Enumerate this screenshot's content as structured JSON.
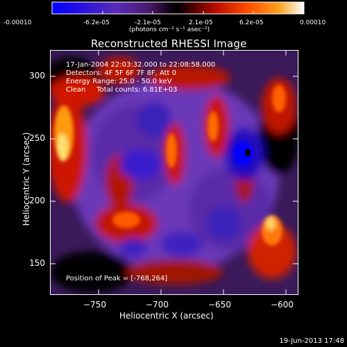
{
  "colorbar": {
    "tick_labels": [
      "-0.00010",
      "-6.2e-05",
      "-2.1e-05",
      "2.1e-05",
      "6.2e-05",
      "0.00010"
    ],
    "units": "(photons cm⁻² s⁻¹ asec⁻²)",
    "colors": [
      "#0000ff",
      "#3a1ccc",
      "#6a2ca8",
      "#2a1030",
      "#000000",
      "#6a0000",
      "#cc1000",
      "#ff5000",
      "#ff9a10",
      "#ffe080",
      "#ffffff"
    ]
  },
  "title": "Reconstructed RHESSI Image",
  "info": {
    "time": "17-Jan-2004 22:03:32.000 to 22:08:58.000",
    "detectors": "Detectors: 4F 5F 6F 7F 8F, Att 0",
    "energy": "Energy Range: 25.0 - 50.0 keV",
    "clean": "Clean     Total counts: 6.81E+03"
  },
  "peak_text": "Position of Peak = [-768,264]",
  "axes": {
    "xlabel": "Heliocentric X (arcsec)",
    "ylabel": "Heliocentric Y (arcsec)",
    "xticks": [
      "−750",
      "−700",
      "−650",
      "−600"
    ],
    "yticks": [
      "300",
      "250",
      "200",
      "150"
    ]
  },
  "plot_date": "19-Jun-2013 17:48"
}
